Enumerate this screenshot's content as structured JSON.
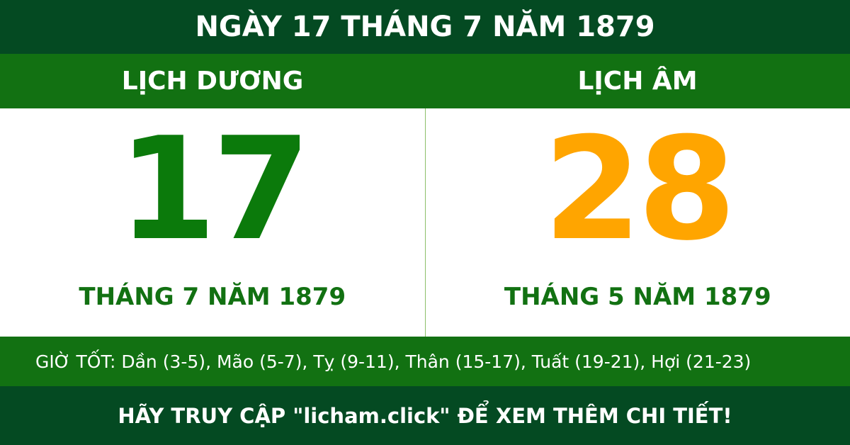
{
  "header": {
    "title": "NGÀY 17 THÁNG 7 NĂM 1879"
  },
  "solar": {
    "heading": "LỊCH DƯƠNG",
    "day": "17",
    "month_year": "THÁNG 7 NĂM 1879"
  },
  "lunar": {
    "heading": "LỊCH ÂM",
    "day": "28",
    "month_year": "THÁNG 5 NĂM 1879"
  },
  "good_hours": "GIỜ TỐT: Dần (3-5), Mão (5-7), Tỵ (9-11), Thân (15-17), Tuất (19-21), Hợi (21-23)",
  "footer": "HÃY TRUY CẬP \"licham.click\" ĐỂ XEM THÊM CHI TIẾT!"
}
